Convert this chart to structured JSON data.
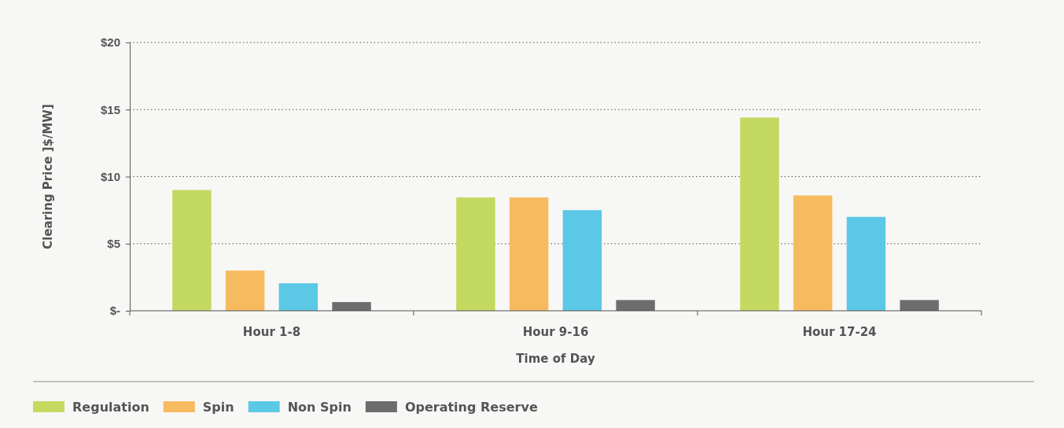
{
  "chart_data": {
    "type": "bar",
    "xlabel": "Time of Day",
    "ylabel": "Clearing Price ]$/MW]",
    "categories": [
      "Hour 1-8",
      "Hour 9-16",
      "Hour 17-24"
    ],
    "series": [
      {
        "name": "Regulation",
        "color": "#c3d960",
        "values": [
          9.0,
          8.45,
          14.4
        ]
      },
      {
        "name": "Spin",
        "color": "#f7bb5f",
        "values": [
          3.0,
          8.45,
          8.6
        ]
      },
      {
        "name": "Non Spin",
        "color": "#5bc8e5",
        "values": [
          2.05,
          7.5,
          7.0
        ]
      },
      {
        "name": "Operating Reserve",
        "color": "#6d6d6d",
        "values": [
          0.65,
          0.8,
          0.8
        ]
      }
    ],
    "ylim": [
      0,
      20
    ],
    "yticks": [
      {
        "value": 0,
        "label": "$-"
      },
      {
        "value": 5,
        "label": "$5"
      },
      {
        "value": 10,
        "label": "$10"
      },
      {
        "value": 15,
        "label": "$15"
      },
      {
        "value": 20,
        "label": "$20"
      }
    ],
    "grid": "y",
    "legend": "bottom left"
  }
}
